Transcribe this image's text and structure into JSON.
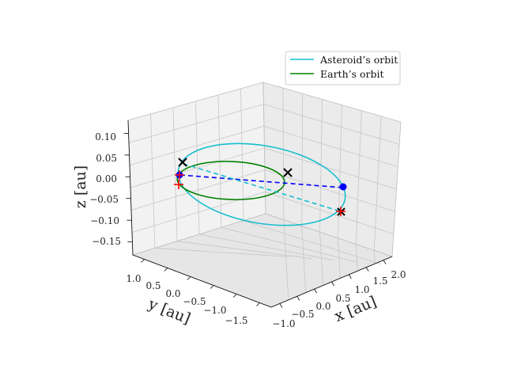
{
  "chart_data": {
    "type": "line",
    "projection": "3d",
    "xlabel": "x [au]",
    "ylabel": "y [au]",
    "zlabel": "z [au]",
    "x_ticks": [
      "−1.0",
      "−0.5",
      "0.0",
      "0.5",
      "1.0",
      "1.5",
      "2.0"
    ],
    "y_ticks": [
      "1.0",
      "0.5",
      "0.0",
      "−0.5",
      "−1.0",
      "−1.5"
    ],
    "z_ticks": [
      "0.10",
      "0.05",
      "0.00",
      "−0.05",
      "−0.10",
      "−0.15"
    ],
    "xlim": [
      -1.2,
      2.3
    ],
    "ylim": [
      -1.8,
      1.2
    ],
    "zlim": [
      -0.18,
      0.13
    ],
    "grid": true,
    "legend_position": "top-right",
    "series": [
      {
        "name": "Asteroid’s orbit",
        "color": "#17becf",
        "style": "solid"
      },
      {
        "name": "Earth’s orbit",
        "color": "#008000",
        "style": "solid"
      }
    ],
    "markers": [
      {
        "kind": "x",
        "color": "#000000"
      },
      {
        "kind": "x",
        "color": "#000000"
      },
      {
        "kind": "x",
        "color": "#000000"
      },
      {
        "kind": "dot",
        "color": "#0000ff"
      },
      {
        "kind": "dot",
        "color": "#0000ff"
      },
      {
        "kind": "plus",
        "color": "#ff0000"
      },
      {
        "kind": "plus",
        "color": "#ff0000"
      }
    ],
    "connectors": [
      {
        "color": "#0000ff",
        "style": "dashed"
      },
      {
        "color": "#17becf",
        "style": "dashed"
      }
    ]
  }
}
